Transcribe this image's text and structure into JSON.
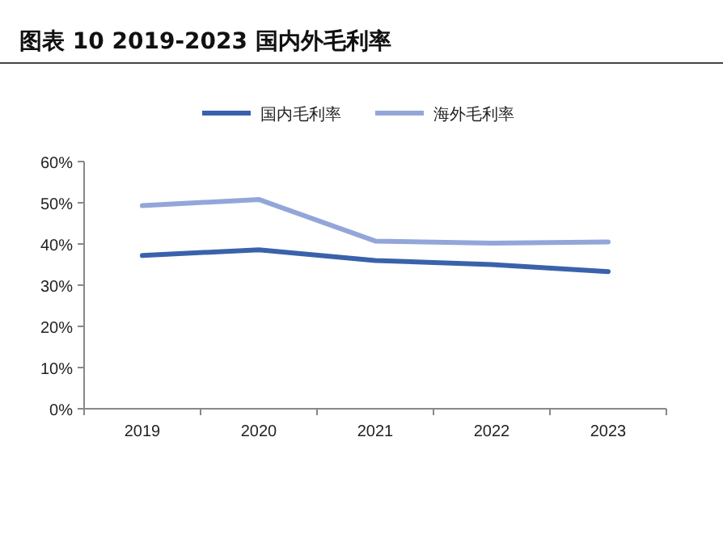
{
  "chart_data": {
    "type": "line",
    "title": "图表 10 2019-2023 国内外毛利率",
    "categories": [
      "2019",
      "2020",
      "2021",
      "2022",
      "2023"
    ],
    "series": [
      {
        "name": "国内毛利率",
        "color": "#3a62ac",
        "values": [
          37.2,
          38.6,
          36.0,
          35.0,
          33.3
        ]
      },
      {
        "name": "海外毛利率",
        "color": "#93a6d9",
        "values": [
          49.3,
          50.8,
          40.7,
          40.2,
          40.5
        ]
      }
    ],
    "ylim": [
      0,
      60
    ],
    "yticks": [
      {
        "value": 0,
        "label": "0%"
      },
      {
        "value": 10,
        "label": "10%"
      },
      {
        "value": 20,
        "label": "20%"
      },
      {
        "value": 30,
        "label": "30%"
      },
      {
        "value": 40,
        "label": "40%"
      },
      {
        "value": 50,
        "label": "50%"
      },
      {
        "value": 60,
        "label": "60%"
      }
    ],
    "grid": false,
    "legend": "top",
    "marker": "none",
    "line_style": "solid"
  }
}
